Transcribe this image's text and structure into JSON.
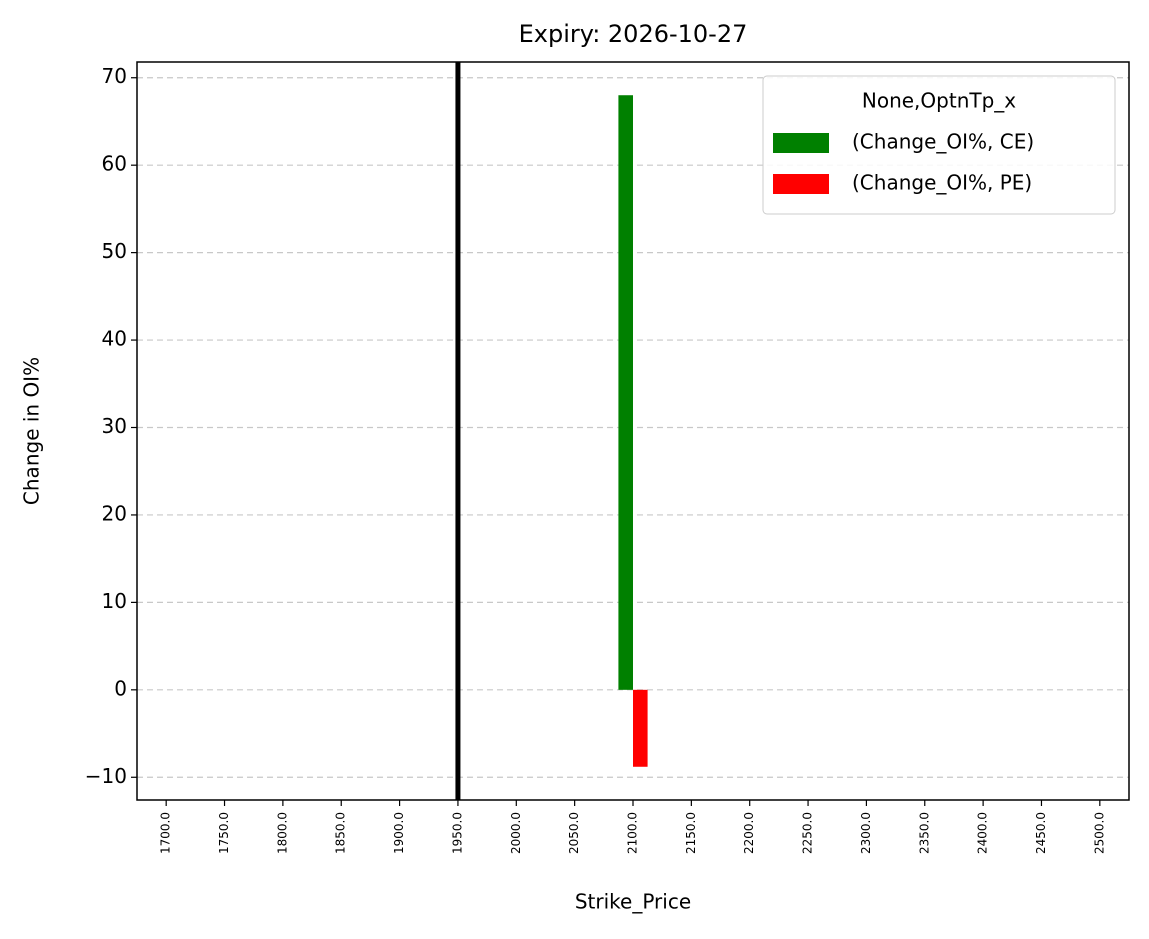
{
  "chart_data": {
    "type": "bar",
    "title": "Expiry: 2026-10-27",
    "x_label": "Strike_Price",
    "y_label": "Change in OI%",
    "categories": [
      "1700.0",
      "1750.0",
      "1800.0",
      "1850.0",
      "1900.0",
      "1950.0",
      "2000.0",
      "2050.0",
      "2100.0",
      "2150.0",
      "2200.0",
      "2250.0",
      "2300.0",
      "2350.0",
      "2400.0",
      "2450.0",
      "2500.0"
    ],
    "series": [
      {
        "name": "(Change_OI%, CE)",
        "color": "#008000",
        "values": [
          null,
          null,
          null,
          null,
          null,
          null,
          null,
          null,
          68,
          null,
          null,
          null,
          null,
          null,
          null,
          null,
          null
        ]
      },
      {
        "name": "(Change_OI%, PE)",
        "color": "#ff0000",
        "values": [
          null,
          null,
          null,
          null,
          null,
          null,
          null,
          null,
          -8.8,
          null,
          null,
          null,
          null,
          null,
          null,
          null,
          null
        ]
      }
    ],
    "legend_title": "None,OptnTp_x",
    "legend": "upper right",
    "vline": {
      "x": 1950,
      "color": "#000000"
    },
    "ylim": [
      -12.6,
      71.8
    ],
    "yticks": [
      {
        "value": -10,
        "label": "−10"
      },
      0,
      10,
      20,
      30,
      40,
      50,
      60,
      70
    ],
    "grid": true
  }
}
